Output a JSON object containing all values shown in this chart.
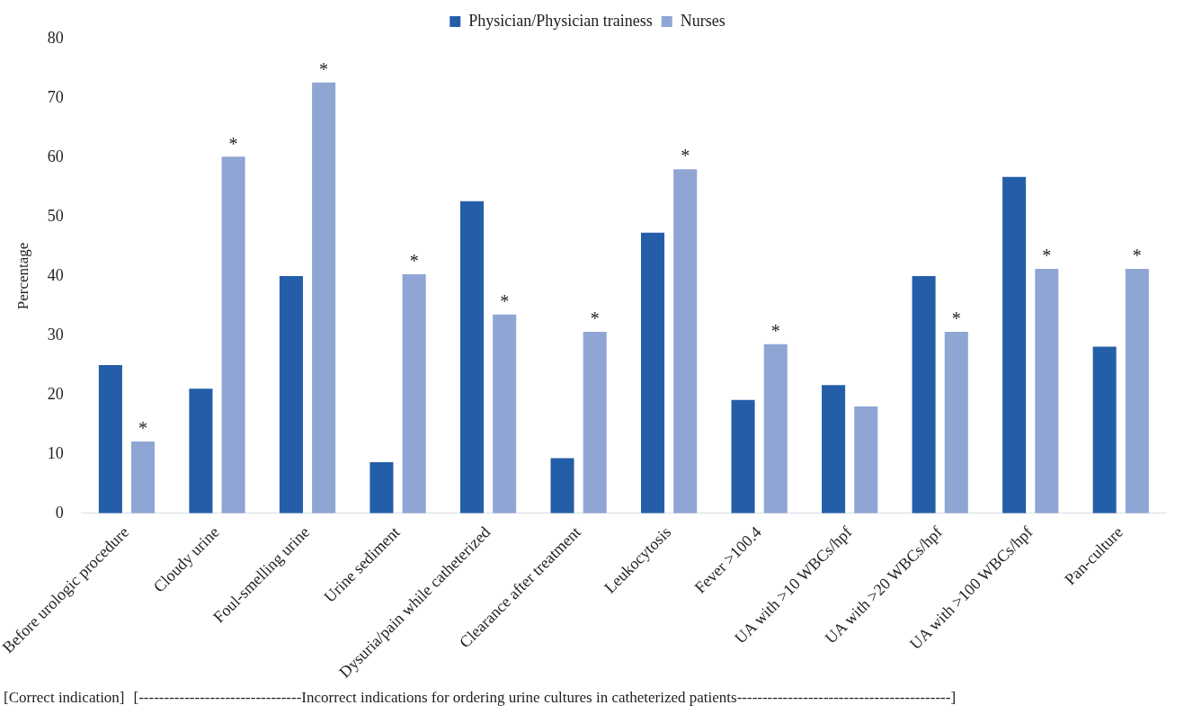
{
  "chart_data": {
    "type": "bar",
    "ylabel": "Percentage",
    "categories": [
      "Before urologic procedure",
      "Cloudy urine",
      "Foul-smelling urine",
      "Urine sediment",
      "Dysuria/pain while catheterized",
      "Clearance after treatment",
      "Leukocytosis",
      "Fever >100.4",
      "UA with >10 WBCs/hpf",
      "UA with >20 WBCs/hpf",
      "UA with >100 WBCs/hpf",
      "Pan-culture"
    ],
    "series": [
      {
        "name": "Physician/Physician trainess",
        "color": "#255ea8",
        "values": [
          25,
          21,
          40,
          8.6,
          52.6,
          9.3,
          47.3,
          19.1,
          21.6,
          40,
          56.7,
          28.1
        ]
      },
      {
        "name": "Nurses",
        "color": "#8fa5d4",
        "values": [
          12.1,
          60.1,
          72.6,
          40.3,
          33.5,
          30.6,
          58,
          28.5,
          18,
          30.6,
          41.2,
          41.2
        ],
        "value_labels": [
          "*",
          "*",
          "*",
          "*",
          "*",
          "*",
          "*",
          "*",
          null,
          "*",
          "*",
          "*"
        ]
      }
    ],
    "ylim": [
      0,
      80
    ],
    "yticks": [
      0,
      10,
      20,
      30,
      40,
      50,
      60,
      70,
      80
    ],
    "grid": false,
    "legend": "top",
    "annotations": [
      "[Correct indication]",
      "[--------------------------------Incorrect indications for ordering urine cultures in catheterized patients------------------------------------------]"
    ]
  }
}
